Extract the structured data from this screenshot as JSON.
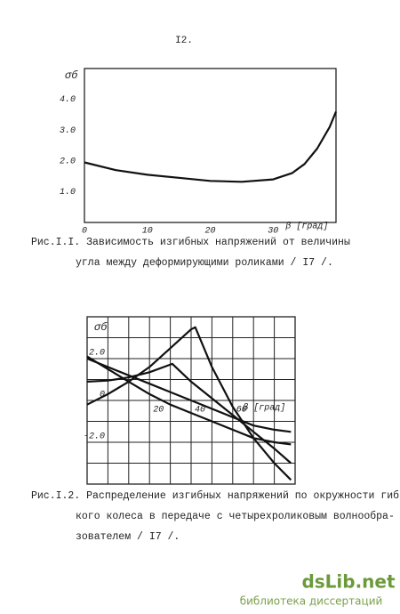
{
  "page_number": "I2.",
  "chart_data": [
    {
      "type": "line",
      "y_label": "σб",
      "x_label": "β [град]",
      "x": [
        0,
        5,
        10,
        15,
        20,
        25,
        30,
        33,
        35,
        37,
        39,
        40
      ],
      "values": [
        1.95,
        1.7,
        1.55,
        1.45,
        1.35,
        1.32,
        1.4,
        1.6,
        1.9,
        2.4,
        3.1,
        3.6
      ],
      "color": "#111111",
      "xlim": [
        0,
        40
      ],
      "ylim": [
        0,
        5
      ],
      "xticks": [
        0,
        10,
        20,
        30
      ],
      "yticks": [
        {
          "value": 1,
          "label": "1.0"
        },
        {
          "value": 2,
          "label": "2.0"
        },
        {
          "value": 3,
          "label": "3.0"
        },
        {
          "value": 4,
          "label": "4.0"
        }
      ],
      "grid": false,
      "caption": [
        "Рис.I.I. Зависимость изгибных напряжений от величины",
        "угла между деформирующими роликами / I7 /."
      ]
    },
    {
      "type": "line",
      "y_label": "σб",
      "x_label": "β [град]",
      "series": [
        {
          "color": "#111111",
          "x": [
            -10,
            0,
            10,
            20,
            30,
            40,
            42,
            50,
            60,
            70,
            80,
            88
          ],
          "values": [
            -0.2,
            0.3,
            0.9,
            1.6,
            2.5,
            3.4,
            3.5,
            1.6,
            -0.3,
            -1.8,
            -3.0,
            -3.8
          ]
        },
        {
          "color": "#111111",
          "x": [
            -10,
            0,
            10,
            20,
            31,
            40,
            50,
            60,
            70,
            80,
            88
          ],
          "values": [
            0.9,
            0.95,
            1.1,
            1.35,
            1.75,
            0.9,
            0.1,
            -0.7,
            -1.5,
            -2.3,
            -3.0
          ]
        },
        {
          "color": "#111111",
          "x": [
            -10,
            0,
            10,
            20,
            30,
            40,
            50,
            60,
            70,
            80,
            88
          ],
          "values": [
            2.1,
            1.5,
            0.9,
            0.3,
            -0.2,
            -0.6,
            -1.0,
            -1.4,
            -1.8,
            -2.0,
            -2.1
          ]
        },
        {
          "color": "#111111",
          "x": [
            -10,
            0,
            10,
            20,
            30,
            40,
            50,
            60,
            70,
            80,
            88
          ],
          "values": [
            2.0,
            1.6,
            1.2,
            0.8,
            0.4,
            0,
            -0.4,
            -0.8,
            -1.2,
            -1.4,
            -1.5
          ]
        }
      ],
      "xlim": [
        -10,
        90
      ],
      "ylim": [
        -4,
        4
      ],
      "xticks": [
        20,
        40,
        60
      ],
      "yticks": [
        {
          "value": 2,
          "label": "2.0"
        },
        0,
        {
          "value": -2,
          "label": "-2.0"
        }
      ],
      "grid": true,
      "xgrid": [
        -10,
        0,
        10,
        20,
        30,
        40,
        50,
        60,
        70,
        80,
        90
      ],
      "ygrid": [
        -4,
        -3,
        -2,
        -1,
        0,
        1,
        2,
        3,
        4
      ],
      "caption": [
        "Рис.I.2. Распределение изгибных напряжений по окружности гиб-",
        "кого колеса в передаче с четырехроликовым волнообра-",
        "зователем / I7 /."
      ]
    }
  ],
  "watermark": {
    "brand": "dsLib.net",
    "subtitle": "библиотека диссертаций"
  }
}
